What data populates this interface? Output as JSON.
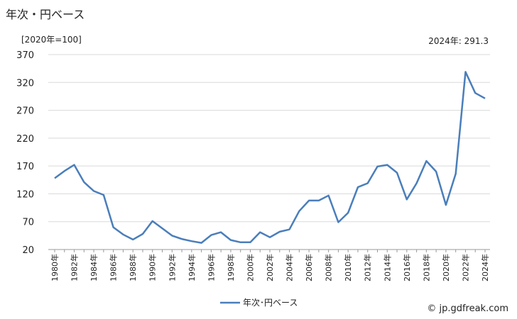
{
  "title": "年次・円ベース",
  "unit_label": "[2020年=100]",
  "latest_label": "2024年: 291.3",
  "credit": "© jp.gdfreak.com",
  "chart_data": {
    "type": "line",
    "title": "年次・円ベース",
    "ylabel": "[2020年=100]",
    "ylim": [
      20,
      370
    ],
    "yticks": [
      20,
      70,
      120,
      170,
      220,
      270,
      320,
      370
    ],
    "grid": true,
    "legend": "bottom-center",
    "line_color": "#4a7ebb",
    "x": [
      "1980年",
      "1981年",
      "1982年",
      "1983年",
      "1984年",
      "1985年",
      "1986年",
      "1987年",
      "1988年",
      "1989年",
      "1990年",
      "1991年",
      "1992年",
      "1993年",
      "1994年",
      "1995年",
      "1996年",
      "1997年",
      "1998年",
      "1999年",
      "2000年",
      "2001年",
      "2002年",
      "2003年",
      "2004年",
      "2005年",
      "2006年",
      "2007年",
      "2008年",
      "2009年",
      "2010年",
      "2011年",
      "2012年",
      "2013年",
      "2014年",
      "2015年",
      "2016年",
      "2017年",
      "2018年",
      "2019年",
      "2020年",
      "2021年",
      "2022年",
      "2023年",
      "2024年"
    ],
    "xtick_labels": [
      "1980年",
      "",
      "1982年",
      "",
      "1984年",
      "",
      "1986年",
      "",
      "1988年",
      "",
      "1990年",
      "",
      "1992年",
      "",
      "1994年",
      "",
      "1996年",
      "",
      "1998年",
      "",
      "2000年",
      "",
      "2002年",
      "",
      "2004年",
      "",
      "2006年",
      "",
      "2008年",
      "",
      "2010年",
      "",
      "2012年",
      "",
      "2014年",
      "",
      "2016年",
      "",
      "2018年",
      "",
      "2020年",
      "",
      "2022年",
      "",
      "2024年"
    ],
    "series": [
      {
        "name": "年次･円ベース",
        "values": [
          148,
          161,
          172,
          141,
          125,
          118,
          60,
          47,
          38,
          48,
          71,
          58,
          45,
          39,
          35,
          32,
          46,
          51,
          37,
          33,
          33,
          51,
          42,
          52,
          56,
          89,
          108,
          108,
          117,
          69,
          86,
          132,
          139,
          169,
          172,
          158,
          110,
          139,
          179,
          160,
          100,
          156,
          339,
          301,
          291.3
        ]
      }
    ]
  }
}
